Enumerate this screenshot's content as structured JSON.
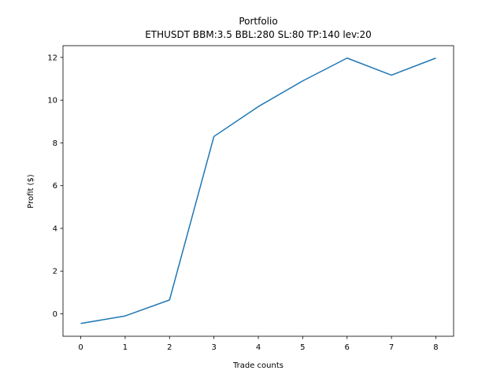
{
  "chart_data": {
    "type": "line",
    "title": "Portfolio",
    "subtitle": "ETHUSDT BBM:3.5 BBL:280 SL:80 TP:140 lev:20",
    "xlabel": "Trade counts",
    "ylabel": "Profit ($)",
    "xlim": [
      -0.4,
      8.4
    ],
    "ylim": [
      -1.05,
      12.55
    ],
    "xticks": [
      0,
      1,
      2,
      3,
      4,
      5,
      6,
      7,
      8
    ],
    "yticks": [
      0,
      2,
      4,
      6,
      8,
      10,
      12
    ],
    "grid": false,
    "series": [
      {
        "color": "#1f77b4",
        "x": [
          0,
          1,
          2,
          3,
          4,
          5,
          6,
          7,
          8
        ],
        "y": [
          -0.45,
          -0.1,
          0.65,
          8.3,
          9.7,
          10.9,
          11.97,
          11.17,
          11.97
        ]
      }
    ]
  }
}
